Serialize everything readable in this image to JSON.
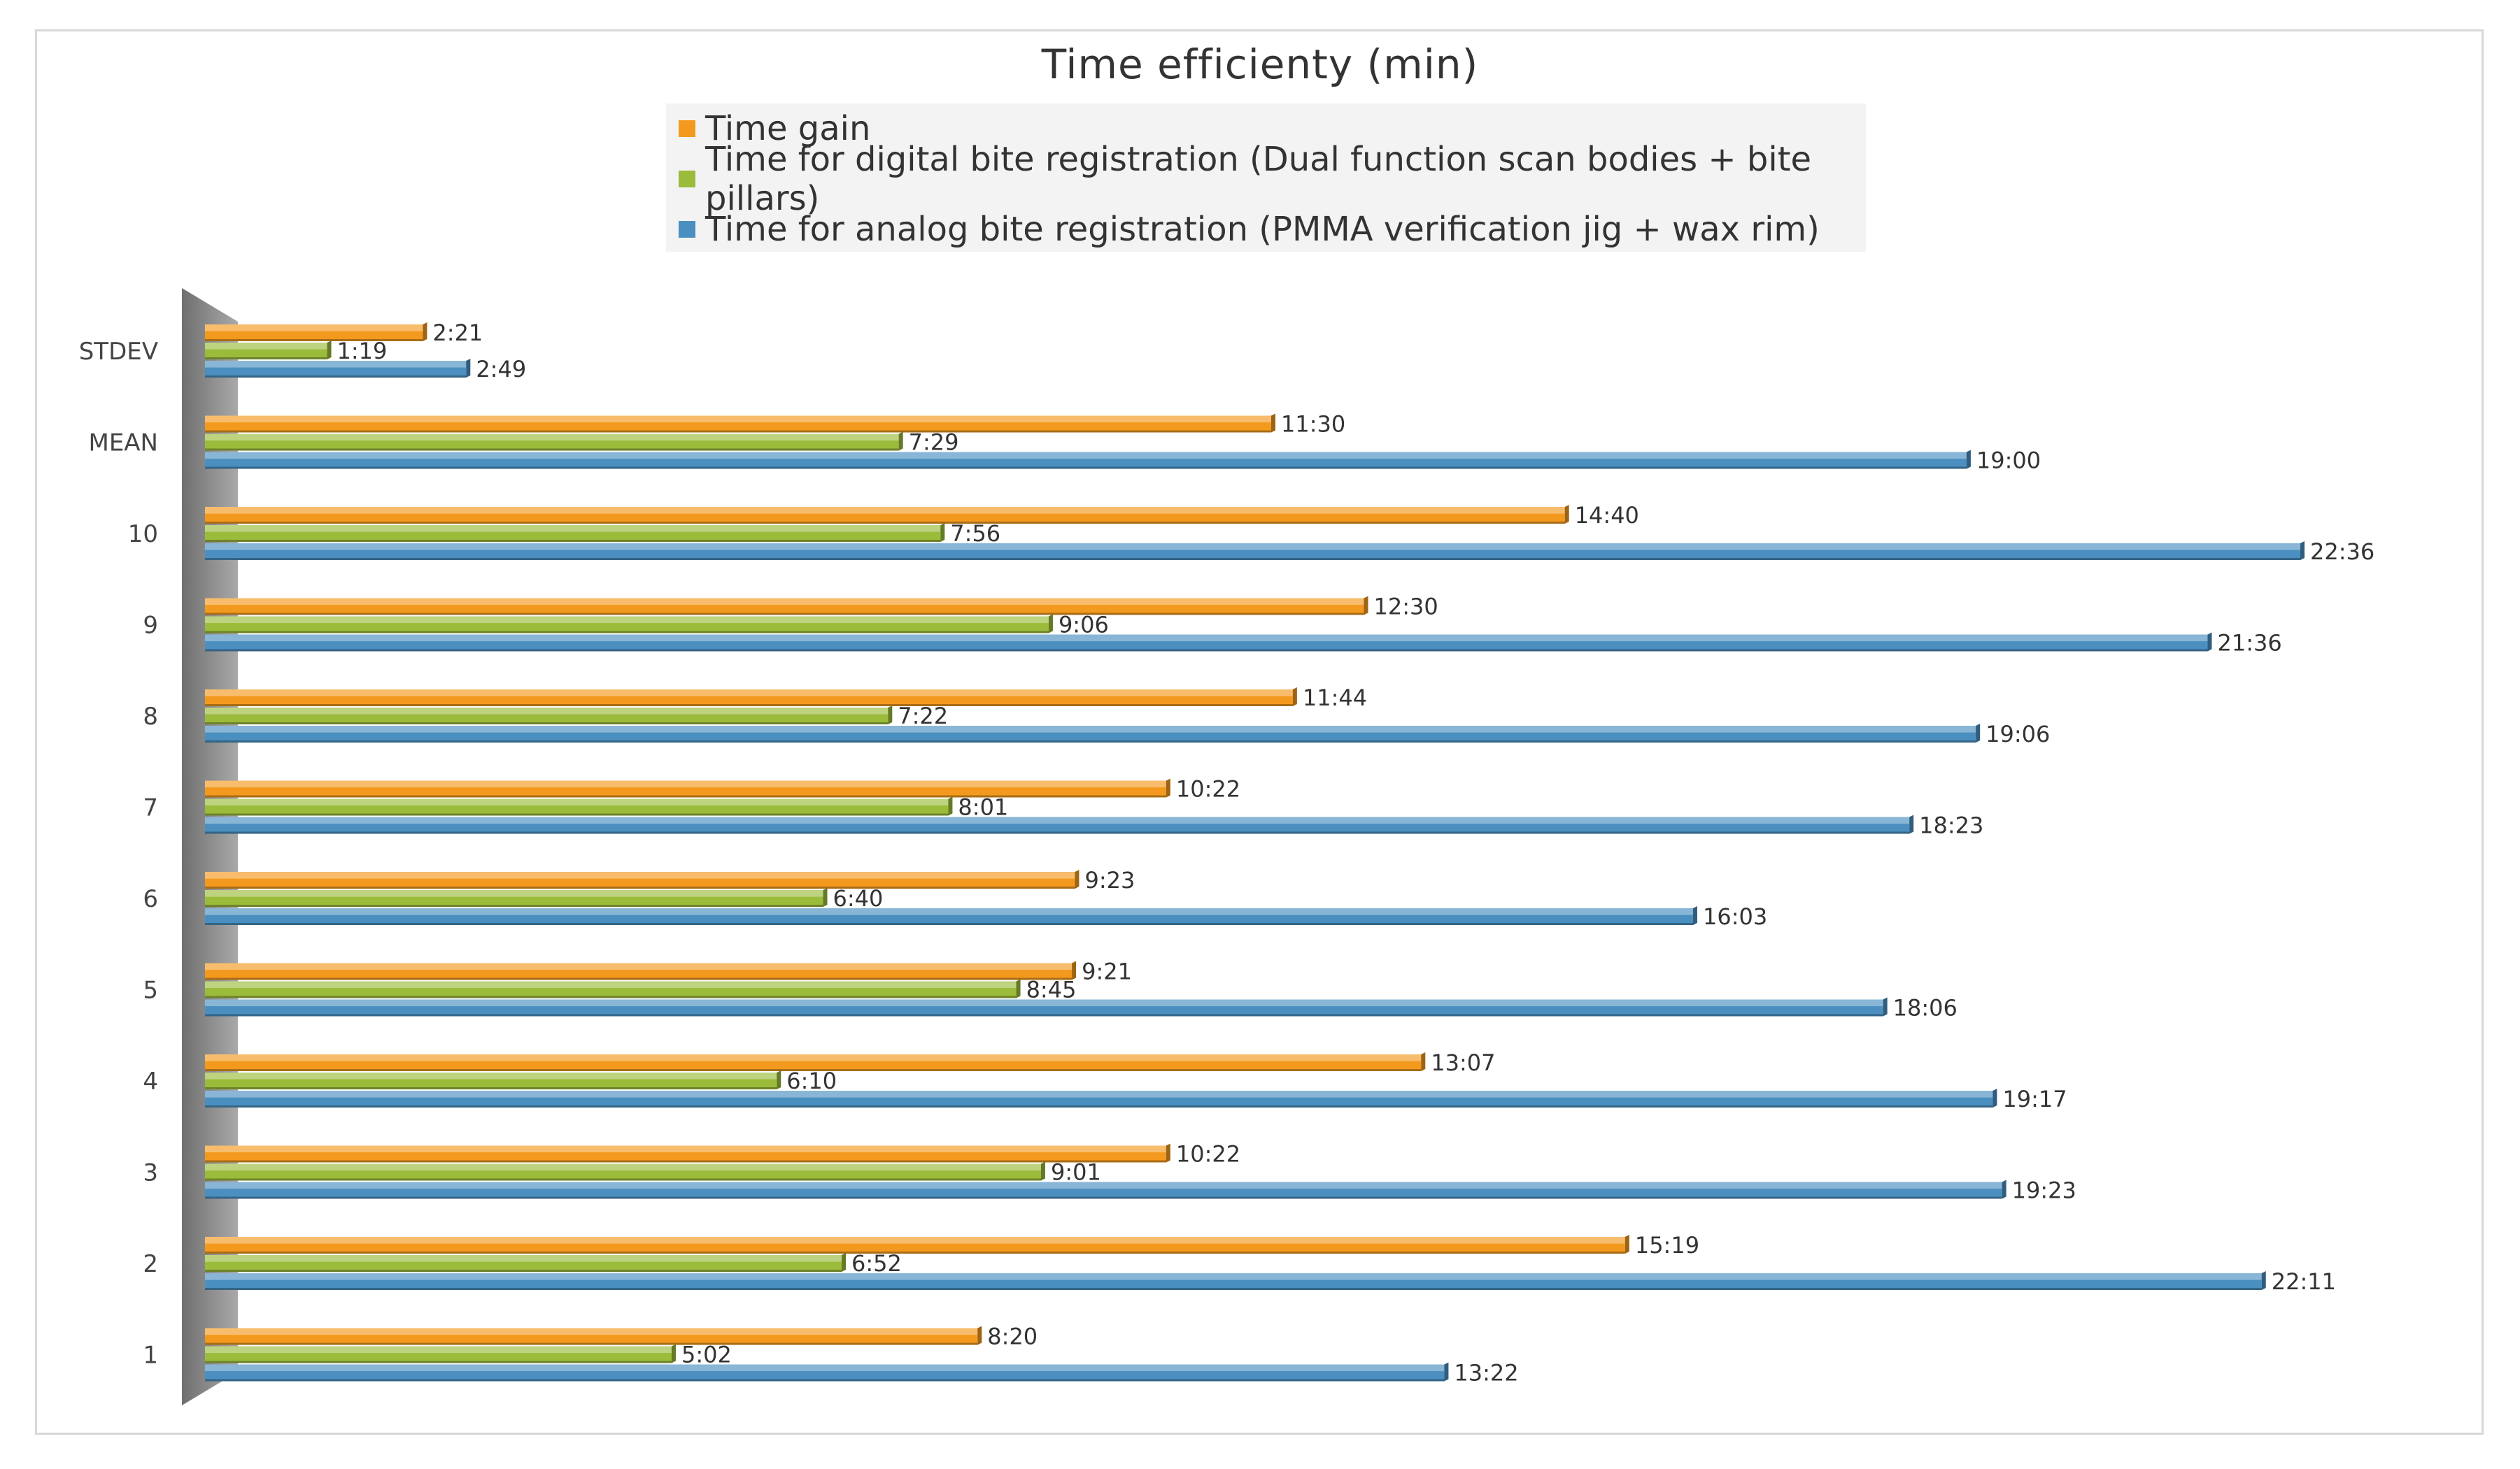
{
  "chart_data": {
    "type": "bar",
    "orientation": "horizontal",
    "title": "Time efficienty (min)",
    "xlabel": "",
    "ylabel": "",
    "unit": "min:sec",
    "legend_position": "top",
    "grid": false,
    "categories": [
      "STDEV",
      "MEAN",
      "10",
      "9",
      "8",
      "7",
      "6",
      "5",
      "4",
      "3",
      "2",
      "1"
    ],
    "series": [
      {
        "name": "Time gain",
        "color": "#f39a1e",
        "labels": [
          "2:21",
          "11:30",
          "14:40",
          "12:30",
          "11:44",
          "10:22",
          "9:23",
          "9:21",
          "13:07",
          "10:22",
          "15:19",
          "8:20"
        ],
        "values": [
          2.35,
          11.5,
          14.667,
          12.5,
          11.733,
          10.367,
          9.383,
          9.35,
          13.117,
          10.367,
          15.317,
          8.333
        ]
      },
      {
        "name": "Time for digital bite registration (Dual function scan bodies + bite pillars)",
        "color": "#9bbb3b",
        "labels": [
          "1:19",
          "7:29",
          "7:56",
          "9:06",
          "7:22",
          "8:01",
          "6:40",
          "8:45",
          "6:10",
          "9:01",
          "6:52",
          "5:02"
        ],
        "values": [
          1.317,
          7.483,
          7.933,
          9.1,
          7.367,
          8.017,
          6.667,
          8.75,
          6.167,
          9.017,
          6.867,
          5.033
        ]
      },
      {
        "name": "Time for analog bite registration (PMMA verification jig + wax rim)",
        "color": "#4a8fc0",
        "labels": [
          "2:49",
          "19:00",
          "22:36",
          "21:36",
          "19:06",
          "18:23",
          "16:03",
          "18:06",
          "19:17",
          "19:23",
          "22:11",
          "13:22"
        ],
        "values": [
          2.817,
          19.0,
          22.6,
          21.6,
          19.1,
          18.383,
          16.05,
          18.1,
          19.283,
          19.383,
          22.183,
          13.367
        ]
      }
    ]
  }
}
